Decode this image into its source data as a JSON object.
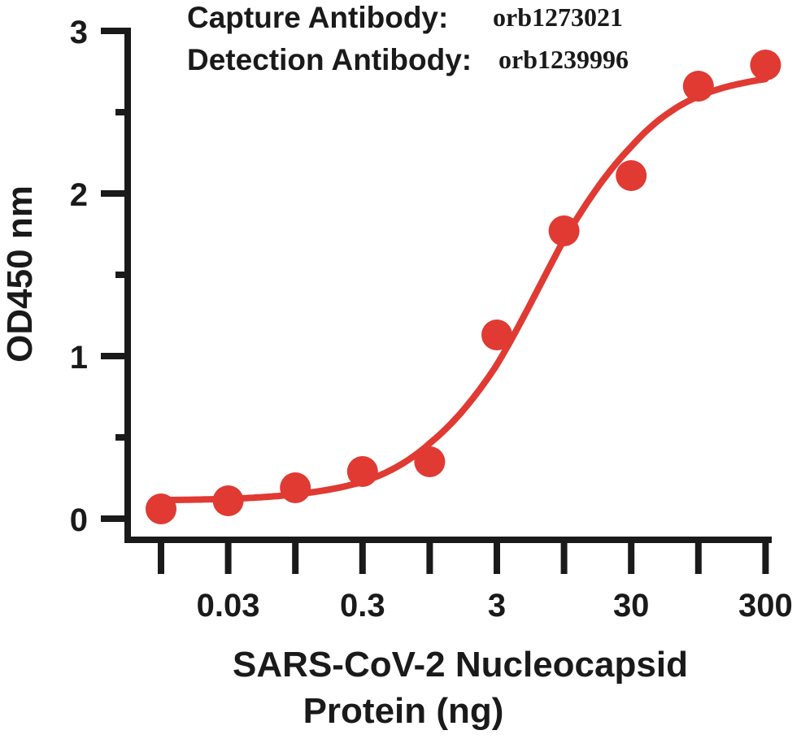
{
  "chart_data": {
    "type": "scatter",
    "title": "",
    "annotations": [
      {
        "label": "Capture Antibody:",
        "value": "orb1273021"
      },
      {
        "label": "Detection Antibody:",
        "value": "orb1239996"
      }
    ],
    "xlabel_lines": [
      "SARS-CoV-2 Nucleocapsid",
      "Protein (ng)"
    ],
    "ylabel": "OD450 nm",
    "x_scale": "log",
    "x_major_ticks": [
      0.01,
      0.03,
      0.1,
      0.3,
      1,
      3,
      10,
      30,
      100,
      300
    ],
    "x_tick_labels": [
      {
        "x": 0.03,
        "label": "0.03"
      },
      {
        "x": 0.3,
        "label": "0.3"
      },
      {
        "x": 3,
        "label": "3"
      },
      {
        "x": 30,
        "label": "30"
      },
      {
        "x": 300,
        "label": "300"
      }
    ],
    "ylim": [
      0,
      3
    ],
    "y_major_ticks": [
      0,
      1,
      2,
      3
    ],
    "y_tick_labels": [
      "0",
      "1",
      "2",
      "3"
    ],
    "y_minor_ticks": [
      0.5,
      1.5,
      2.5
    ],
    "grid": false,
    "legend": "none",
    "series": [
      {
        "marker": "circle",
        "color": "#e03a33",
        "x": [
          0.01,
          0.03,
          0.1,
          0.3,
          1,
          3,
          10,
          30,
          100,
          300
        ],
        "y": [
          0.06,
          0.11,
          0.19,
          0.29,
          0.35,
          1.13,
          1.77,
          2.11,
          2.66,
          2.79
        ]
      }
    ],
    "fit_curve": {
      "type": "4PL",
      "color": "#e03a33",
      "bottom": 0.11,
      "top": 2.76,
      "ec50": 6.5,
      "hill": 1.0
    }
  }
}
